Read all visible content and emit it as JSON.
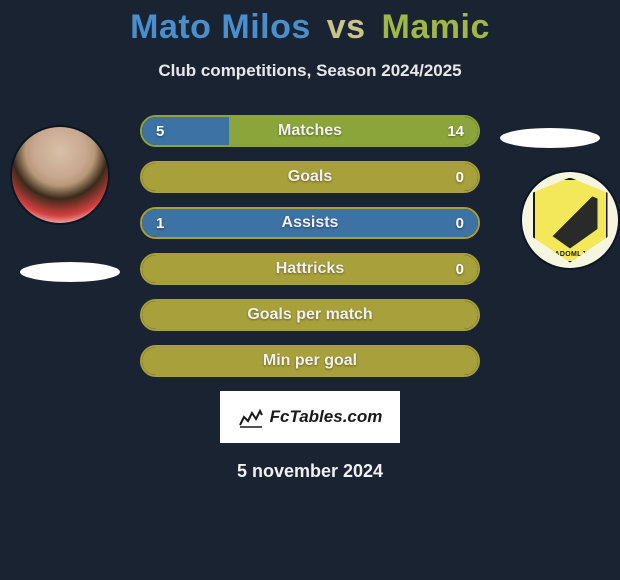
{
  "title": {
    "player1": "Mato Milos",
    "vs": "vs",
    "player2": "Mamic"
  },
  "subtitle": "Club competitions, Season 2024/2025",
  "colors": {
    "player1": "#4a8fcc",
    "player2": "#9fb846",
    "background": "#1a2332",
    "bar_matches_fill_left": "#3d72a4",
    "bar_matches_fill_right": "#8ca53a",
    "bar_matches_border": "#8ca53a",
    "bar_goals_fill": "#a8a03a",
    "bar_goals_border": "#a8a03a",
    "bar_assists_fill": "#3d72a4",
    "bar_assists_border": "#a8a03a",
    "bar_hattricks_fill": "#a8a03a",
    "bar_hattricks_border": "#a8a03a",
    "bar_gpm_fill": "#a8a03a",
    "bar_gpm_border": "#a8a03a",
    "bar_mpg_fill": "#a8a03a",
    "bar_mpg_border": "#a8a03a"
  },
  "bars": {
    "matches": {
      "label": "Matches",
      "left": "5",
      "right": "14",
      "left_pct": 26,
      "right_pct": 74
    },
    "goals": {
      "label": "Goals",
      "left": "",
      "right": "0",
      "fill_pct": 100
    },
    "assists": {
      "label": "Assists",
      "left": "1",
      "right": "0",
      "fill_pct": 100
    },
    "hattricks": {
      "label": "Hattricks",
      "left": "",
      "right": "0",
      "fill_pct": 100
    },
    "gpm": {
      "label": "Goals per match",
      "left": "",
      "right": "",
      "fill_pct": 100
    },
    "mpg": {
      "label": "Min per goal",
      "left": "",
      "right": "",
      "fill_pct": 100
    }
  },
  "brand": "FcTables.com",
  "date": "5 november 2024",
  "badge_text": "RADOMLJE"
}
